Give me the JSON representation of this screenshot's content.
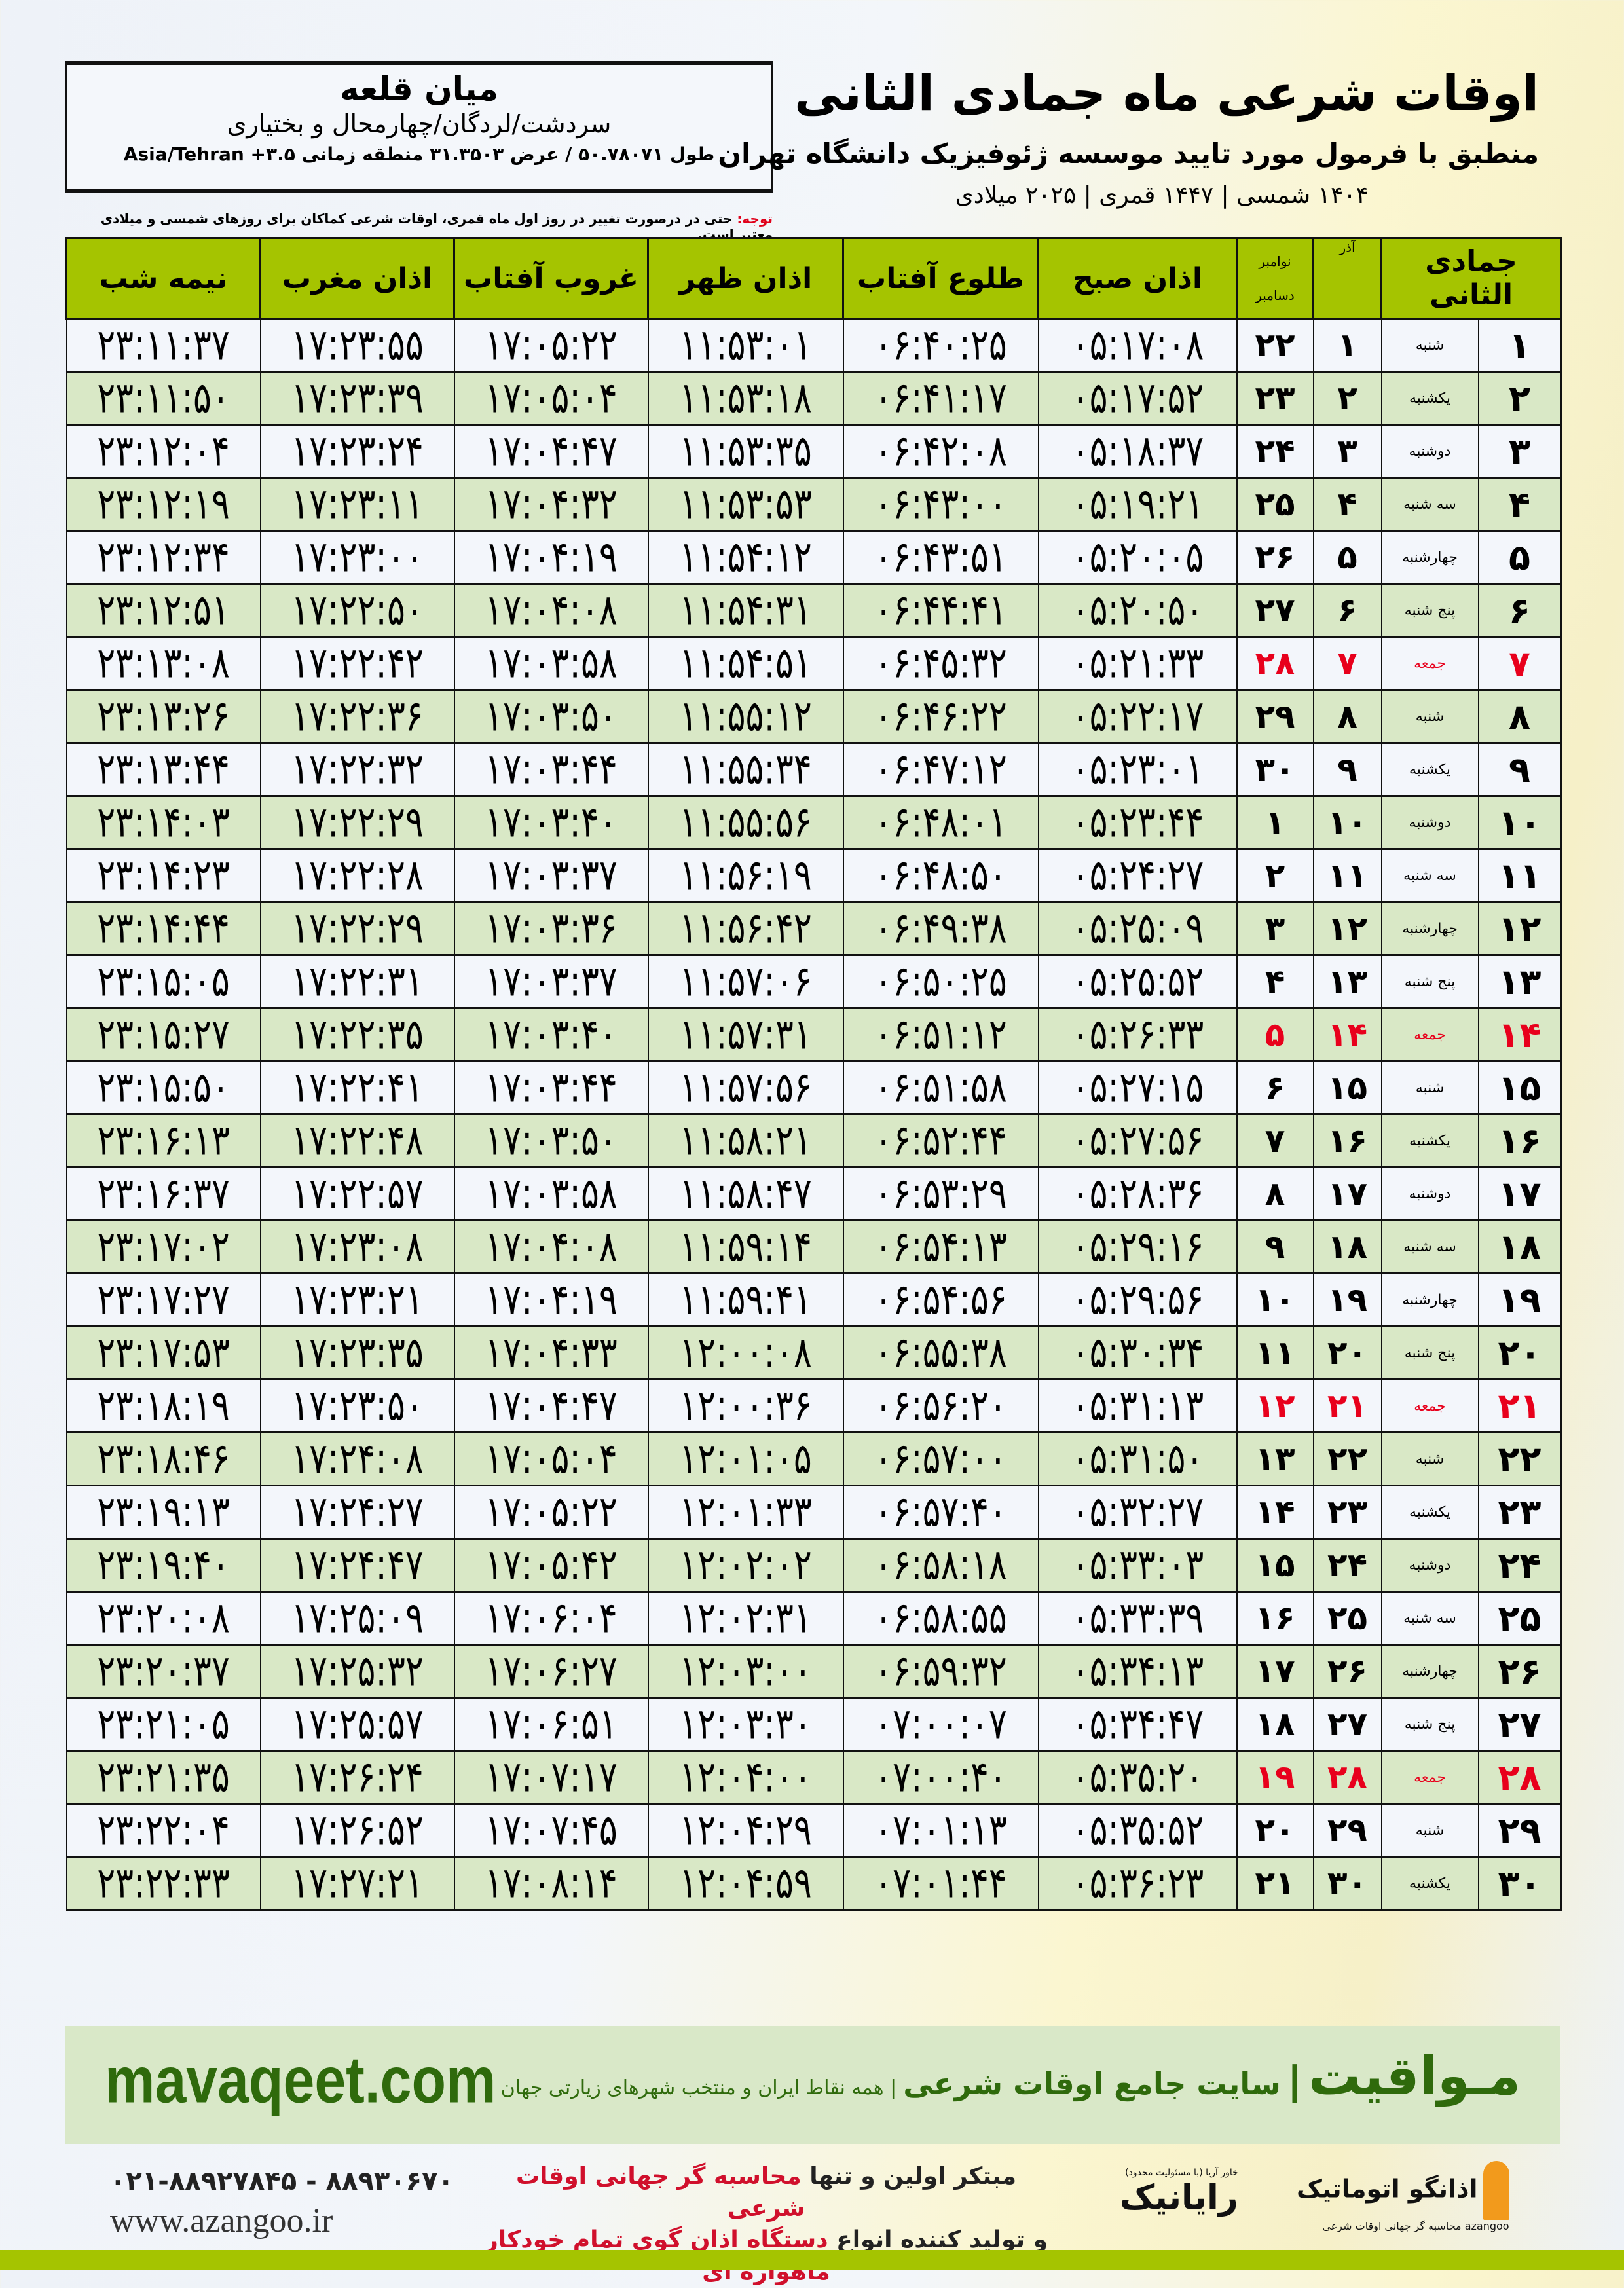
{
  "location": {
    "city": "میان قلعه",
    "region": "سردشت/لردگان/چهارمحال و بختیاری",
    "coords": "طول ۵۰.۷۸۰۷۱ / عرض ۳۱.۳۵۰۳ منطقه زمانی ۳.۵+ Asia/Tehran"
  },
  "header": {
    "title": "اوقات شرعی ماه جمادی الثانی",
    "subtitle": "منطبق با فرمول مورد تایید موسسه ژئوفیزیک دانشگاه تهران",
    "years": "۱۴۰۴ شمسی | ۱۴۴۷ قمری | ۲۰۲۵ میلادی"
  },
  "notice": {
    "label": "توجه:",
    "text": " حتی در درصورت تغییر در روز اول ماه قمری، اوقات شرعی کماکان برای روزهای شمسی و میلادی معتبر است."
  },
  "table": {
    "headers": {
      "hijri": "جمادی الثانی",
      "azar": "آذر",
      "gregorian_top": "نوامبر",
      "gregorian_bottom": "دسامبر",
      "fajr": "اذان صبح",
      "sunrise": "طلوع آفتاب",
      "dhuhr": "اذان ظهر",
      "sunset": "غروب آفتاب",
      "maghrib": "اذان مغرب",
      "midnight": "نیمه شب"
    },
    "friday_color": "#e8001c",
    "header_color": "#a5c400",
    "rows": [
      [
        "۱",
        "شنبه",
        "۱",
        "۲۲",
        "۰۵:۱۷:۰۸",
        "۰۶:۴۰:۲۵",
        "۱۱:۵۳:۰۱",
        "۱۷:۰۵:۲۲",
        "۱۷:۲۳:۵۵",
        "۲۳:۱۱:۳۷"
      ],
      [
        "۲",
        "یکشنبه",
        "۲",
        "۲۳",
        "۰۵:۱۷:۵۲",
        "۰۶:۴۱:۱۷",
        "۱۱:۵۳:۱۸",
        "۱۷:۰۵:۰۴",
        "۱۷:۲۳:۳۹",
        "۲۳:۱۱:۵۰"
      ],
      [
        "۳",
        "دوشنبه",
        "۳",
        "۲۴",
        "۰۵:۱۸:۳۷",
        "۰۶:۴۲:۰۸",
        "۱۱:۵۳:۳۵",
        "۱۷:۰۴:۴۷",
        "۱۷:۲۳:۲۴",
        "۲۳:۱۲:۰۴"
      ],
      [
        "۴",
        "سه شنبه",
        "۴",
        "۲۵",
        "۰۵:۱۹:۲۱",
        "۰۶:۴۳:۰۰",
        "۱۱:۵۳:۵۳",
        "۱۷:۰۴:۳۲",
        "۱۷:۲۳:۱۱",
        "۲۳:۱۲:۱۹"
      ],
      [
        "۵",
        "چهارشنبه",
        "۵",
        "۲۶",
        "۰۵:۲۰:۰۵",
        "۰۶:۴۳:۵۱",
        "۱۱:۵۴:۱۲",
        "۱۷:۰۴:۱۹",
        "۱۷:۲۳:۰۰",
        "۲۳:۱۲:۳۴"
      ],
      [
        "۶",
        "پنج شنبه",
        "۶",
        "۲۷",
        "۰۵:۲۰:۵۰",
        "۰۶:۴۴:۴۱",
        "۱۱:۵۴:۳۱",
        "۱۷:۰۴:۰۸",
        "۱۷:۲۲:۵۰",
        "۲۳:۱۲:۵۱"
      ],
      [
        "۷",
        "جمعه",
        "۷",
        "۲۸",
        "۰۵:۲۱:۳۳",
        "۰۶:۴۵:۳۲",
        "۱۱:۵۴:۵۱",
        "۱۷:۰۳:۵۸",
        "۱۷:۲۲:۴۲",
        "۲۳:۱۳:۰۸"
      ],
      [
        "۸",
        "شنبه",
        "۸",
        "۲۹",
        "۰۵:۲۲:۱۷",
        "۰۶:۴۶:۲۲",
        "۱۱:۵۵:۱۲",
        "۱۷:۰۳:۵۰",
        "۱۷:۲۲:۳۶",
        "۲۳:۱۳:۲۶"
      ],
      [
        "۹",
        "یکشنبه",
        "۹",
        "۳۰",
        "۰۵:۲۳:۰۱",
        "۰۶:۴۷:۱۲",
        "۱۱:۵۵:۳۴",
        "۱۷:۰۳:۴۴",
        "۱۷:۲۲:۳۲",
        "۲۳:۱۳:۴۴"
      ],
      [
        "۱۰",
        "دوشنبه",
        "۱۰",
        "۱",
        "۰۵:۲۳:۴۴",
        "۰۶:۴۸:۰۱",
        "۱۱:۵۵:۵۶",
        "۱۷:۰۳:۴۰",
        "۱۷:۲۲:۲۹",
        "۲۳:۱۴:۰۳"
      ],
      [
        "۱۱",
        "سه شنبه",
        "۱۱",
        "۲",
        "۰۵:۲۴:۲۷",
        "۰۶:۴۸:۵۰",
        "۱۱:۵۶:۱۹",
        "۱۷:۰۳:۳۷",
        "۱۷:۲۲:۲۸",
        "۲۳:۱۴:۲۳"
      ],
      [
        "۱۲",
        "چهارشنبه",
        "۱۲",
        "۳",
        "۰۵:۲۵:۰۹",
        "۰۶:۴۹:۳۸",
        "۱۱:۵۶:۴۲",
        "۱۷:۰۳:۳۶",
        "۱۷:۲۲:۲۹",
        "۲۳:۱۴:۴۴"
      ],
      [
        "۱۳",
        "پنج شنبه",
        "۱۳",
        "۴",
        "۰۵:۲۵:۵۲",
        "۰۶:۵۰:۲۵",
        "۱۱:۵۷:۰۶",
        "۱۷:۰۳:۳۷",
        "۱۷:۲۲:۳۱",
        "۲۳:۱۵:۰۵"
      ],
      [
        "۱۴",
        "جمعه",
        "۱۴",
        "۵",
        "۰۵:۲۶:۳۳",
        "۰۶:۵۱:۱۲",
        "۱۱:۵۷:۳۱",
        "۱۷:۰۳:۴۰",
        "۱۷:۲۲:۳۵",
        "۲۳:۱۵:۲۷"
      ],
      [
        "۱۵",
        "شنبه",
        "۱۵",
        "۶",
        "۰۵:۲۷:۱۵",
        "۰۶:۵۱:۵۸",
        "۱۱:۵۷:۵۶",
        "۱۷:۰۳:۴۴",
        "۱۷:۲۲:۴۱",
        "۲۳:۱۵:۵۰"
      ],
      [
        "۱۶",
        "یکشنبه",
        "۱۶",
        "۷",
        "۰۵:۲۷:۵۶",
        "۰۶:۵۲:۴۴",
        "۱۱:۵۸:۲۱",
        "۱۷:۰۳:۵۰",
        "۱۷:۲۲:۴۸",
        "۲۳:۱۶:۱۳"
      ],
      [
        "۱۷",
        "دوشنبه",
        "۱۷",
        "۸",
        "۰۵:۲۸:۳۶",
        "۰۶:۵۳:۲۹",
        "۱۱:۵۸:۴۷",
        "۱۷:۰۳:۵۸",
        "۱۷:۲۲:۵۷",
        "۲۳:۱۶:۳۷"
      ],
      [
        "۱۸",
        "سه شنبه",
        "۱۸",
        "۹",
        "۰۵:۲۹:۱۶",
        "۰۶:۵۴:۱۳",
        "۱۱:۵۹:۱۴",
        "۱۷:۰۴:۰۸",
        "۱۷:۲۳:۰۸",
        "۲۳:۱۷:۰۲"
      ],
      [
        "۱۹",
        "چهارشنبه",
        "۱۹",
        "۱۰",
        "۰۵:۲۹:۵۶",
        "۰۶:۵۴:۵۶",
        "۱۱:۵۹:۴۱",
        "۱۷:۰۴:۱۹",
        "۱۷:۲۳:۲۱",
        "۲۳:۱۷:۲۷"
      ],
      [
        "۲۰",
        "پنج شنبه",
        "۲۰",
        "۱۱",
        "۰۵:۳۰:۳۴",
        "۰۶:۵۵:۳۸",
        "۱۲:۰۰:۰۸",
        "۱۷:۰۴:۳۳",
        "۱۷:۲۳:۳۵",
        "۲۳:۱۷:۵۳"
      ],
      [
        "۲۱",
        "جمعه",
        "۲۱",
        "۱۲",
        "۰۵:۳۱:۱۳",
        "۰۶:۵۶:۲۰",
        "۱۲:۰۰:۳۶",
        "۱۷:۰۴:۴۷",
        "۱۷:۲۳:۵۰",
        "۲۳:۱۸:۱۹"
      ],
      [
        "۲۲",
        "شنبه",
        "۲۲",
        "۱۳",
        "۰۵:۳۱:۵۰",
        "۰۶:۵۷:۰۰",
        "۱۲:۰۱:۰۵",
        "۱۷:۰۵:۰۴",
        "۱۷:۲۴:۰۸",
        "۲۳:۱۸:۴۶"
      ],
      [
        "۲۳",
        "یکشنبه",
        "۲۳",
        "۱۴",
        "۰۵:۳۲:۲۷",
        "۰۶:۵۷:۴۰",
        "۱۲:۰۱:۳۳",
        "۱۷:۰۵:۲۲",
        "۱۷:۲۴:۲۷",
        "۲۳:۱۹:۱۳"
      ],
      [
        "۲۴",
        "دوشنبه",
        "۲۴",
        "۱۵",
        "۰۵:۳۳:۰۳",
        "۰۶:۵۸:۱۸",
        "۱۲:۰۲:۰۲",
        "۱۷:۰۵:۴۲",
        "۱۷:۲۴:۴۷",
        "۲۳:۱۹:۴۰"
      ],
      [
        "۲۵",
        "سه شنبه",
        "۲۵",
        "۱۶",
        "۰۵:۳۳:۳۹",
        "۰۶:۵۸:۵۵",
        "۱۲:۰۲:۳۱",
        "۱۷:۰۶:۰۴",
        "۱۷:۲۵:۰۹",
        "۲۳:۲۰:۰۸"
      ],
      [
        "۲۶",
        "چهارشنبه",
        "۲۶",
        "۱۷",
        "۰۵:۳۴:۱۳",
        "۰۶:۵۹:۳۲",
        "۱۲:۰۳:۰۰",
        "۱۷:۰۶:۲۷",
        "۱۷:۲۵:۳۲",
        "۲۳:۲۰:۳۷"
      ],
      [
        "۲۷",
        "پنج شنبه",
        "۲۷",
        "۱۸",
        "۰۵:۳۴:۴۷",
        "۰۷:۰۰:۰۷",
        "۱۲:۰۳:۳۰",
        "۱۷:۰۶:۵۱",
        "۱۷:۲۵:۵۷",
        "۲۳:۲۱:۰۵"
      ],
      [
        "۲۸",
        "جمعه",
        "۲۸",
        "۱۹",
        "۰۵:۳۵:۲۰",
        "۰۷:۰۰:۴۰",
        "۱۲:۰۴:۰۰",
        "۱۷:۰۷:۱۷",
        "۱۷:۲۶:۲۴",
        "۲۳:۲۱:۳۵"
      ],
      [
        "۲۹",
        "شنبه",
        "۲۹",
        "۲۰",
        "۰۵:۳۵:۵۲",
        "۰۷:۰۱:۱۳",
        "۱۲:۰۴:۲۹",
        "۱۷:۰۷:۴۵",
        "۱۷:۲۶:۵۲",
        "۲۳:۲۲:۰۴"
      ],
      [
        "۳۰",
        "یکشنبه",
        "۳۰",
        "۲۱",
        "۰۵:۳۶:۲۳",
        "۰۷:۰۱:۴۴",
        "۱۲:۰۴:۵۹",
        "۱۷:۰۸:۱۴",
        "۱۷:۲۷:۲۱",
        "۲۳:۲۲:۳۳"
      ]
    ]
  },
  "footer": {
    "website": "mavaqeet.com",
    "brand": "مـواقیت",
    "brand_sep": "|",
    "brand_tagline": "سایت جامع اوقات شرعی",
    "brand_sub": "| همه نقاط ایران و منتخب شهرهای زیارتی جهان",
    "phone": "۰۲۱-۸۸۹۲۷۸۴۵ - ۸۸۹۳۰۶۷۰",
    "azangoo_site": "www.azangoo.ir",
    "promo_line1_a": "مبتکر اولین و تنها ",
    "promo_line1_b": "محاسبه گر جهانی اوقات شرعی",
    "promo_line2_a": "و تولید کننده انواع ",
    "promo_line2_b": "دستگاه اذان گوی تمام خودکار ماهواره ای",
    "logo_raianik": "رایانیک",
    "logo_raianik_sub": "خاور آریا (با مسئولیت محدود)",
    "logo_azangoo": "اذانگو اتوماتیک",
    "logo_azangoo_sub": "azangoo محاسبه گر جهانی اوقات شرعی",
    "accent_color": "#2f6a0c",
    "bar_color": "#a5c400"
  }
}
